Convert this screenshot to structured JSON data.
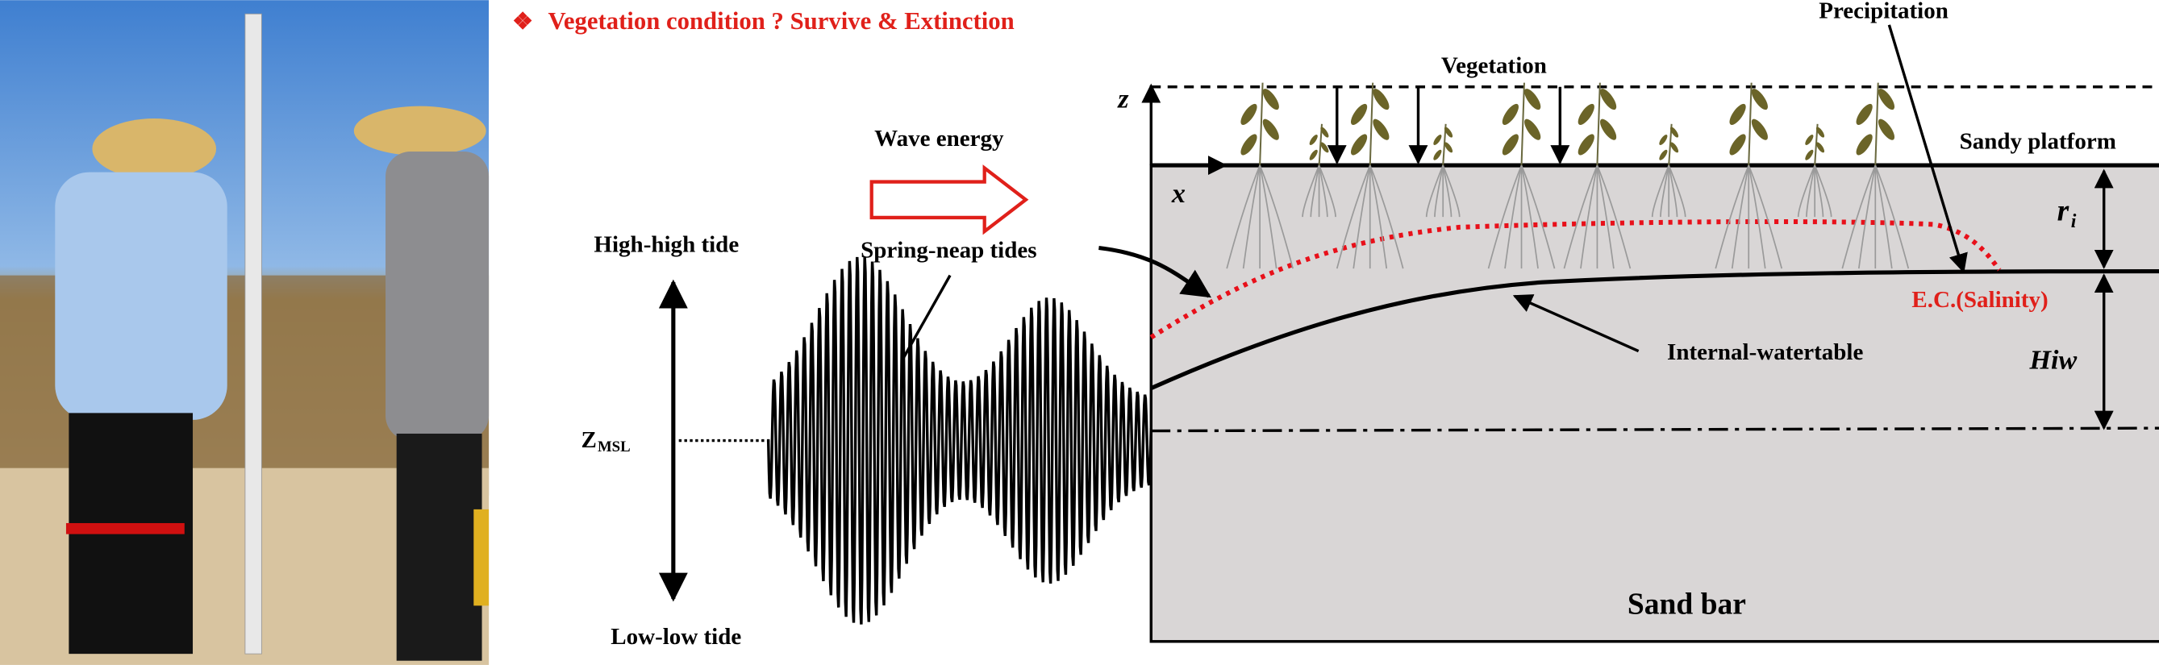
{
  "title_bullet": "❖",
  "title": "Vegetation condition ? Survive & Extinction",
  "labels": {
    "precipitation": "Precipitation",
    "vegetation": "Vegetation",
    "z_axis": "z",
    "x_axis": "x",
    "sandy_platform": "Sandy platform",
    "wave_energy": "Wave energy",
    "high_tide": "High-high  tide",
    "spring_neap": "Spring-neap tides",
    "ri_main": "r",
    "ri_sub": "i",
    "salinity": "E.C.(Salinity)",
    "hiw": "Hiw",
    "watertable": "Internal-watertable",
    "zmsl_main": "Z",
    "zmsl_sub": "MSL",
    "low_tide": "Low-low tide",
    "sand_bar": "Sand bar"
  }
}
